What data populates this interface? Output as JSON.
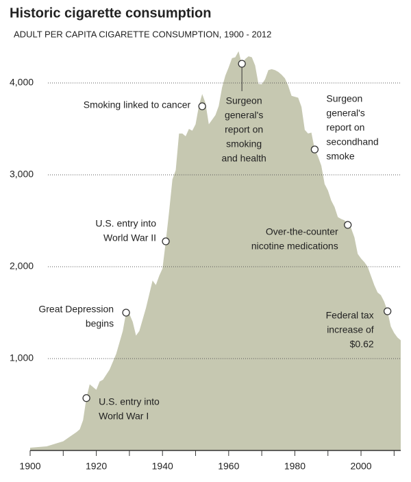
{
  "chart_data": {
    "type": "area",
    "title": "Historic cigarette consumption",
    "subtitle": "ADULT PER CAPITA CIGARETTE CONSUMPTION, 1900 - 2012",
    "color": "#c6c8b1",
    "x": [
      1900,
      1905,
      1910,
      1912,
      1914,
      1915,
      1916,
      1917,
      1918,
      1919,
      1920,
      1921,
      1922,
      1924,
      1926,
      1928,
      1929,
      1930,
      1931,
      1932,
      1933,
      1935,
      1937,
      1938,
      1939,
      1940,
      1941,
      1942,
      1943,
      1944,
      1945,
      1946,
      1947,
      1948,
      1949,
      1950,
      1951,
      1952,
      1953,
      1954,
      1955,
      1956,
      1957,
      1958,
      1959,
      1960,
      1961,
      1962,
      1963,
      1964,
      1965,
      1966,
      1967,
      1968,
      1969,
      1970,
      1971,
      1972,
      1973,
      1974,
      1975,
      1976,
      1977,
      1978,
      1979,
      1980,
      1981,
      1982,
      1983,
      1984,
      1985,
      1986,
      1987,
      1988,
      1989,
      1990,
      1991,
      1992,
      1993,
      1994,
      1995,
      1996,
      1997,
      1998,
      1999,
      2000,
      2001,
      2002,
      2003,
      2004,
      2005,
      2006,
      2007,
      2008,
      2009,
      2010,
      2011,
      2012
    ],
    "values": [
      30,
      45,
      100,
      150,
      200,
      230,
      330,
      570,
      720,
      690,
      660,
      750,
      770,
      880,
      1050,
      1300,
      1500,
      1485,
      1400,
      1250,
      1300,
      1550,
      1850,
      1800,
      1900,
      1980,
      2276,
      2600,
      2950,
      3050,
      3450,
      3450,
      3420,
      3500,
      3480,
      3550,
      3750,
      3880,
      3780,
      3550,
      3600,
      3650,
      3750,
      3950,
      4080,
      4170,
      4270,
      4280,
      4345,
      4200,
      4260,
      4290,
      4280,
      4190,
      3990,
      3985,
      4040,
      4140,
      4150,
      4140,
      4120,
      4090,
      4050,
      3970,
      3860,
      3850,
      3840,
      3740,
      3490,
      3450,
      3460,
      3276,
      3200,
      3100,
      2900,
      2830,
      2720,
      2650,
      2540,
      2520,
      2505,
      2455,
      2420,
      2320,
      2140,
      2090,
      2050,
      2000,
      1900,
      1800,
      1720,
      1690,
      1620,
      1515,
      1350,
      1280,
      1230,
      1200
    ],
    "xlim": [
      1900,
      2012
    ],
    "xticks": [
      1900,
      1920,
      1940,
      1960,
      1980,
      2000
    ],
    "x_minor_ticks": [
      1910,
      1930,
      1950,
      1970,
      1990,
      2010
    ],
    "ylim": [
      0,
      4400
    ],
    "yticks": [
      {
        "value": 1000,
        "label": "1,000"
      },
      {
        "value": 2000,
        "label": "2,000"
      },
      {
        "value": 3000,
        "label": "3,000"
      },
      {
        "value": 4000,
        "label": "4,000"
      }
    ],
    "grid": true,
    "annotations": [
      {
        "year": 1917,
        "value": 570,
        "text": [
          "U.S. entry into",
          "World War I"
        ]
      },
      {
        "year": 1929,
        "value": 1500,
        "text": [
          "Great Depression",
          "begins"
        ]
      },
      {
        "year": 1941,
        "value": 2276,
        "text": [
          "U.S. entry into",
          "World War II"
        ]
      },
      {
        "year": 1952,
        "value": 3746,
        "text": [
          "Smoking linked to cancer"
        ]
      },
      {
        "year": 1964,
        "value": 4209,
        "text": [
          "Surgeon",
          "general's",
          "report on",
          "smoking",
          "and health"
        ]
      },
      {
        "year": 1986,
        "value": 3276,
        "text": [
          "Surgeon",
          "general's",
          "report on",
          "secondhand",
          "smoke"
        ]
      },
      {
        "year": 1996,
        "value": 2455,
        "text": [
          "Over-the-counter",
          "nicotine medications"
        ]
      },
      {
        "year": 2008,
        "value": 1515,
        "text": [
          "Federal tax",
          "increase of",
          "$0.62"
        ]
      }
    ]
  }
}
